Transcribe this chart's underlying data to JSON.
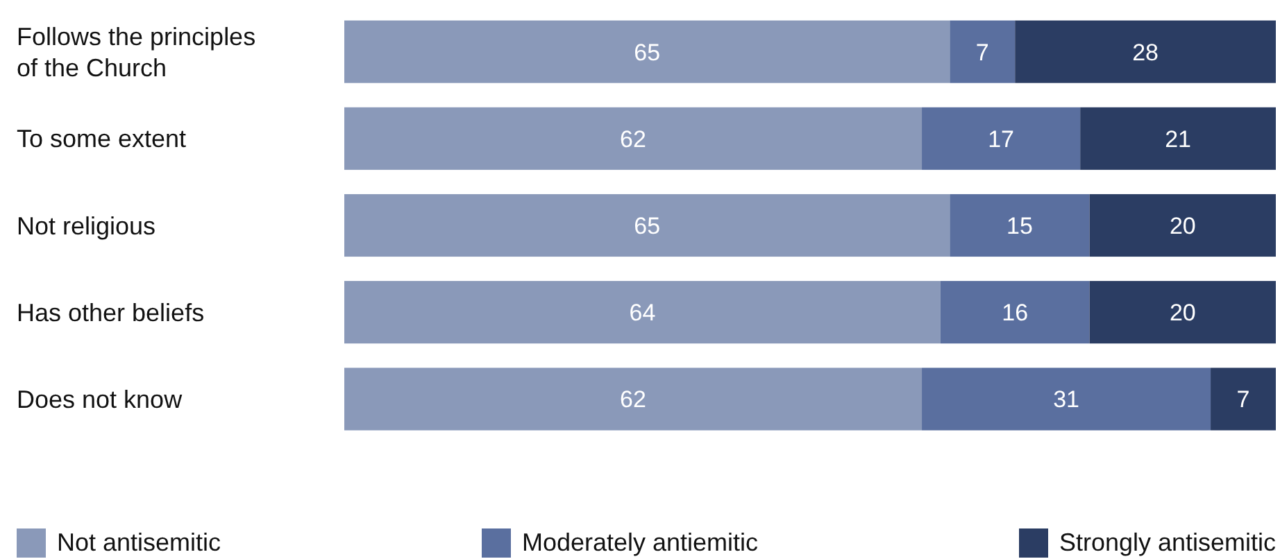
{
  "chart_data": {
    "type": "bar",
    "orientation": "horizontal",
    "stacked": true,
    "data_labels": true,
    "legend": "bottom",
    "tick_labels": "y",
    "xlim": [
      0,
      100
    ],
    "categories": [
      "Follows the principles of the Church",
      "To some extent",
      "Not religious",
      "Has other beliefs",
      "Does not know"
    ],
    "series": [
      {
        "name": "Not antisemitic",
        "color": "#8a99b9",
        "values": [
          65,
          62,
          65,
          64,
          62
        ]
      },
      {
        "name": "Moderately antiemitic",
        "color": "#5a6f9f",
        "values": [
          7,
          17,
          15,
          16,
          31
        ]
      },
      {
        "name": "Strongly antisemitic",
        "color": "#2b3d63",
        "values": [
          28,
          21,
          20,
          20,
          7
        ]
      }
    ]
  }
}
